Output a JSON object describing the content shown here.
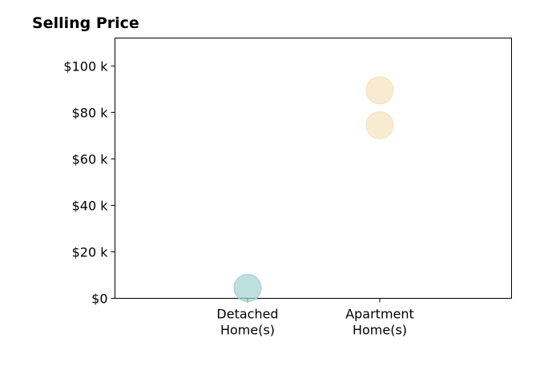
{
  "chart_data": {
    "type": "scatter",
    "title": "Selling Price",
    "xlabel": "",
    "ylabel": "",
    "categories": [
      [
        "Detached",
        "Home(s)"
      ],
      [
        "Apartment",
        "Home(s)"
      ]
    ],
    "ylim": [
      0,
      112000
    ],
    "y_ticks": [
      {
        "value": 0,
        "label": "$0"
      },
      {
        "value": 20000,
        "label": "$20 k"
      },
      {
        "value": 40000,
        "label": "$40 k"
      },
      {
        "value": 60000,
        "label": "$60 k"
      },
      {
        "value": 80000,
        "label": "$80 k"
      },
      {
        "value": 100000,
        "label": "$100 k"
      }
    ],
    "grid": false,
    "legend": "none",
    "series": [
      {
        "category": 0,
        "color": "#9fd3cf",
        "points": [
          {
            "x": "Detached Home(s)",
            "y": 4500
          }
        ]
      },
      {
        "category": 1,
        "color": "#f5e2bd",
        "points": [
          {
            "x": "Apartment Home(s)",
            "y": 89500
          },
          {
            "x": "Apartment Home(s)",
            "y": 74500
          }
        ]
      }
    ]
  }
}
